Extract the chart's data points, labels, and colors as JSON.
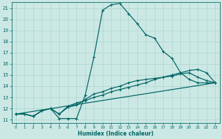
{
  "xlabel": "Humidex (Indice chaleur)",
  "bg_color": "#cce8e4",
  "line_color": "#006666",
  "grid_color": "#aad4cc",
  "xlim": [
    -0.5,
    23.5
  ],
  "ylim": [
    10.7,
    21.5
  ],
  "xticks": [
    0,
    1,
    2,
    3,
    4,
    5,
    6,
    7,
    8,
    9,
    10,
    11,
    12,
    13,
    14,
    15,
    16,
    17,
    18,
    19,
    20,
    21,
    22,
    23
  ],
  "yticks": [
    11,
    12,
    13,
    14,
    15,
    16,
    17,
    18,
    19,
    20,
    21
  ],
  "line1_x": [
    0,
    1,
    2,
    3,
    4,
    5,
    6,
    7,
    8,
    9,
    10,
    11,
    12,
    13,
    14,
    15,
    16,
    17,
    18,
    19,
    20,
    21,
    22,
    23
  ],
  "line1_y": [
    11.5,
    11.5,
    11.3,
    11.8,
    12.0,
    11.1,
    11.1,
    11.1,
    13.2,
    16.6,
    20.8,
    21.3,
    21.4,
    20.5,
    19.6,
    18.6,
    18.3,
    17.1,
    16.5,
    15.2,
    14.6,
    14.3,
    14.3,
    14.3
  ],
  "line2_x": [
    0,
    1,
    2,
    3,
    4,
    5,
    6,
    7,
    8,
    9,
    10,
    11,
    12,
    13,
    14,
    15,
    16,
    17,
    18,
    19,
    20,
    21,
    22,
    23
  ],
  "line2_y": [
    11.5,
    11.5,
    11.3,
    11.8,
    12.0,
    11.5,
    12.2,
    12.5,
    12.7,
    13.0,
    13.2,
    13.5,
    13.7,
    13.9,
    14.1,
    14.3,
    14.6,
    14.8,
    15.0,
    15.2,
    15.4,
    15.5,
    15.2,
    14.3
  ],
  "line3_x": [
    0,
    23
  ],
  "line3_y": [
    11.5,
    14.3
  ],
  "line4_x": [
    0,
    1,
    2,
    3,
    4,
    5,
    6,
    7,
    8,
    9,
    10,
    11,
    12,
    13,
    14,
    15,
    16,
    17,
    18,
    19,
    20,
    21,
    22,
    23
  ],
  "line4_y": [
    11.5,
    11.5,
    11.3,
    11.8,
    12.0,
    11.5,
    12.1,
    12.3,
    12.8,
    13.3,
    13.5,
    13.8,
    14.0,
    14.3,
    14.5,
    14.6,
    14.7,
    14.8,
    14.9,
    15.1,
    15.2,
    14.8,
    14.5,
    14.3
  ],
  "xtick_fontsize": 4.2,
  "ytick_fontsize": 5.0,
  "xlabel_fontsize": 5.5
}
